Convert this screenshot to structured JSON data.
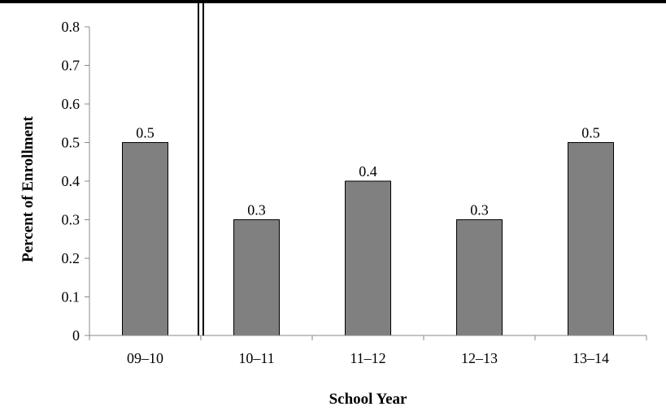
{
  "chart_data": {
    "type": "bar",
    "title": "",
    "xlabel": "School Year",
    "ylabel": "Percent of Enrollment",
    "categories": [
      "09–10",
      "10–11",
      "11–12",
      "12–13",
      "13–14"
    ],
    "values": [
      0.5,
      0.3,
      0.4,
      0.3,
      0.5
    ],
    "data_labels": [
      "0.5",
      "0.3",
      "0.4",
      "0.3",
      "0.5"
    ],
    "ylim": [
      0,
      0.8
    ],
    "yticks": [
      "0",
      "0.1",
      "0.2",
      "0.3",
      "0.4",
      "0.5",
      "0.6",
      "0.7",
      "0.8"
    ],
    "grid": false,
    "legend": "none",
    "bar_color": "#808080",
    "separator_after_category": "09–10"
  }
}
